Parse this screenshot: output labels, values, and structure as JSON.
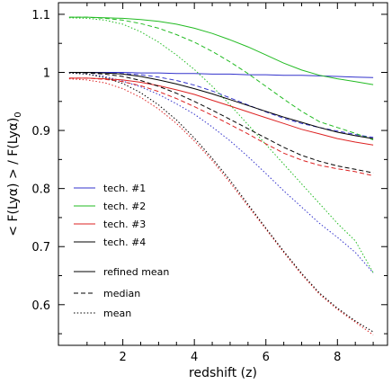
{
  "chart_data": {
    "type": "line",
    "xlabel": "redshift (z)",
    "ylabel": "< F(Lyα) > / F(Lyα)",
    "ylabel_sub": "0",
    "xlim": [
      0.2,
      9.4
    ],
    "ylim": [
      0.53,
      1.12
    ],
    "xticks": [
      2,
      4,
      6,
      8
    ],
    "yticks": [
      0.6,
      0.7,
      0.8,
      0.9,
      1.0,
      1.1
    ],
    "ytick_labels": [
      "0.6",
      "0.7",
      "0.8",
      "0.9",
      "1",
      "1.1"
    ],
    "grid": false,
    "legend_techniques": [
      {
        "label": "tech. #1",
        "color": "#3333cc"
      },
      {
        "label": "tech. #2",
        "color": "#22bb22"
      },
      {
        "label": "tech. #3",
        "color": "#dd2222"
      },
      {
        "label": "tech. #4",
        "color": "#000000"
      }
    ],
    "legend_statistics": [
      {
        "label": "refined mean",
        "dash": "solid"
      },
      {
        "label": "median",
        "dash": "dashed"
      },
      {
        "label": "mean",
        "dash": "dotted"
      }
    ],
    "x": [
      0.5,
      1.0,
      1.5,
      2.0,
      2.5,
      3.0,
      3.5,
      4.0,
      4.5,
      5.0,
      5.5,
      6.0,
      6.5,
      7.0,
      7.5,
      8.0,
      8.5,
      9.0
    ],
    "series": [
      {
        "name": "tech. #1 refined mean",
        "color": "#3333cc",
        "dash": "solid",
        "values": [
          1.0,
          1.0,
          1.0,
          1.0,
          0.999,
          0.999,
          0.998,
          0.998,
          0.997,
          0.997,
          0.996,
          0.996,
          0.995,
          0.995,
          0.994,
          0.993,
          0.992,
          0.991
        ]
      },
      {
        "name": "tech. #1 median",
        "color": "#3333cc",
        "dash": "dashed",
        "values": [
          1.0,
          1.0,
          0.999,
          0.998,
          0.996,
          0.992,
          0.986,
          0.978,
          0.968,
          0.956,
          0.944,
          0.932,
          0.921,
          0.912,
          0.905,
          0.899,
          0.893,
          0.888
        ]
      },
      {
        "name": "tech. #1 mean",
        "color": "#3333cc",
        "dash": "dotted",
        "values": [
          0.999,
          0.997,
          0.993,
          0.985,
          0.975,
          0.962,
          0.946,
          0.928,
          0.906,
          0.882,
          0.855,
          0.826,
          0.796,
          0.768,
          0.74,
          0.716,
          0.69,
          0.655
        ]
      },
      {
        "name": "tech. #2 refined mean",
        "color": "#22bb22",
        "dash": "solid",
        "values": [
          1.095,
          1.095,
          1.094,
          1.093,
          1.091,
          1.088,
          1.083,
          1.076,
          1.067,
          1.056,
          1.044,
          1.03,
          1.016,
          1.004,
          0.995,
          0.989,
          0.984,
          0.979
        ]
      },
      {
        "name": "tech. #2 median",
        "color": "#22bb22",
        "dash": "dashed",
        "values": [
          1.095,
          1.095,
          1.093,
          1.09,
          1.084,
          1.076,
          1.065,
          1.052,
          1.036,
          1.018,
          0.998,
          0.976,
          0.954,
          0.933,
          0.915,
          0.905,
          0.895,
          0.884
        ]
      },
      {
        "name": "tech. #2 mean",
        "color": "#22bb22",
        "dash": "dotted",
        "values": [
          1.094,
          1.093,
          1.09,
          1.083,
          1.07,
          1.052,
          1.03,
          1.005,
          0.976,
          0.944,
          0.91,
          0.876,
          0.842,
          0.808,
          0.774,
          0.74,
          0.71,
          0.655
        ]
      },
      {
        "name": "tech. #3 refined mean",
        "color": "#dd2222",
        "dash": "solid",
        "values": [
          0.99,
          0.99,
          0.989,
          0.987,
          0.983,
          0.977,
          0.97,
          0.962,
          0.952,
          0.942,
          0.932,
          0.922,
          0.912,
          0.902,
          0.894,
          0.886,
          0.88,
          0.875
        ]
      },
      {
        "name": "tech. #3 median",
        "color": "#dd2222",
        "dash": "dashed",
        "values": [
          0.99,
          0.99,
          0.988,
          0.984,
          0.977,
          0.967,
          0.955,
          0.941,
          0.926,
          0.91,
          0.894,
          0.877,
          0.861,
          0.849,
          0.84,
          0.834,
          0.829,
          0.822
        ]
      },
      {
        "name": "tech. #3 mean",
        "color": "#dd2222",
        "dash": "dotted",
        "values": [
          0.989,
          0.987,
          0.982,
          0.972,
          0.957,
          0.937,
          0.912,
          0.882,
          0.848,
          0.81,
          0.77,
          0.73,
          0.69,
          0.652,
          0.618,
          0.592,
          0.57,
          0.548
        ]
      },
      {
        "name": "tech. #4 refined mean",
        "color": "#000000",
        "dash": "solid",
        "values": [
          1.0,
          1.0,
          0.999,
          0.997,
          0.993,
          0.987,
          0.98,
          0.972,
          0.963,
          0.953,
          0.943,
          0.933,
          0.923,
          0.914,
          0.905,
          0.897,
          0.891,
          0.886
        ]
      },
      {
        "name": "tech. #4 median",
        "color": "#000000",
        "dash": "dashed",
        "values": [
          1.0,
          0.999,
          0.997,
          0.993,
          0.986,
          0.976,
          0.964,
          0.95,
          0.935,
          0.919,
          0.903,
          0.887,
          0.871,
          0.857,
          0.847,
          0.839,
          0.833,
          0.827
        ]
      },
      {
        "name": "tech. #4 mean",
        "color": "#000000",
        "dash": "dotted",
        "values": [
          0.999,
          0.997,
          0.991,
          0.981,
          0.965,
          0.944,
          0.918,
          0.887,
          0.852,
          0.814,
          0.773,
          0.732,
          0.692,
          0.654,
          0.62,
          0.594,
          0.572,
          0.553
        ]
      }
    ]
  }
}
